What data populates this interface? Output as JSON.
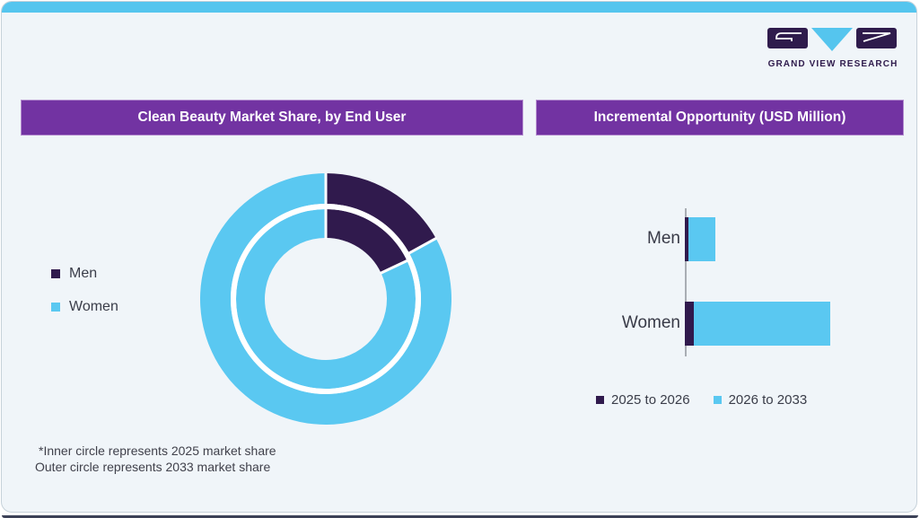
{
  "page": {
    "background": "#FFFFFF",
    "card_bg": "#F0F5F9",
    "top_bar_color": "#55C5EE",
    "bottom_bar_color": "#3C4157",
    "header_bg": "#7233A2",
    "accent_dark_purple": "#301A4D",
    "accent_light_blue": "#5AC8F1"
  },
  "logo": {
    "brand": "GRAND VIEW RESEARCH",
    "icons": [
      "logo-g-block",
      "logo-v-triangle",
      "logo-r-block"
    ]
  },
  "panels": {
    "left": {
      "title": "Clean Beauty Market Share, by End User",
      "legend": [
        {
          "label": "Men",
          "color": "#301A4D"
        },
        {
          "label": "Women",
          "color": "#5AC8F1"
        }
      ],
      "footnote_line1": "*Inner circle represents 2025 market share",
      "footnote_line2": "Outer circle represents 2033 market share"
    },
    "right": {
      "title": "Incremental Opportunity (USD Million)",
      "legend": [
        {
          "label": "2025 to 2026",
          "color": "#301A4D"
        },
        {
          "label": "2026 to 2033",
          "color": "#5AC8F1"
        }
      ]
    }
  },
  "chart_data": [
    {
      "id": "market-share-donut",
      "type": "pie",
      "subtype": "double-ring-donut",
      "title": "Clean Beauty Market Share, by End User",
      "labels": [
        "Men",
        "Women"
      ],
      "rings": [
        {
          "position": "inner",
          "year": "2025",
          "labels": [
            "Men",
            "Women"
          ],
          "values_pct": [
            18,
            82
          ]
        },
        {
          "position": "outer",
          "year": "2033",
          "labels": [
            "Men",
            "Women"
          ],
          "values_pct": [
            17,
            83
          ]
        }
      ],
      "colors": {
        "Men": "#301A4D",
        "Women": "#5AC8F1"
      },
      "start_angle_deg": 0,
      "legend_position": "left",
      "note": "*Inner circle represents 2025 market share; Outer circle represents 2033 market share"
    },
    {
      "id": "incremental-opportunity-bars",
      "type": "bar",
      "orientation": "horizontal",
      "stacked": true,
      "title": "Incremental Opportunity (USD Million)",
      "categories": [
        "Men",
        "Women"
      ],
      "series": [
        {
          "name": "2025 to 2026",
          "color": "#301A4D",
          "values_relative": [
            4,
            10
          ]
        },
        {
          "name": "2026 to 2033",
          "color": "#5AC8F1",
          "values_relative": [
            30,
            152
          ]
        }
      ],
      "axis_unlabeled": true,
      "values_unit": "relative bar length (no numeric axis shown)",
      "legend_position": "bottom"
    }
  ]
}
